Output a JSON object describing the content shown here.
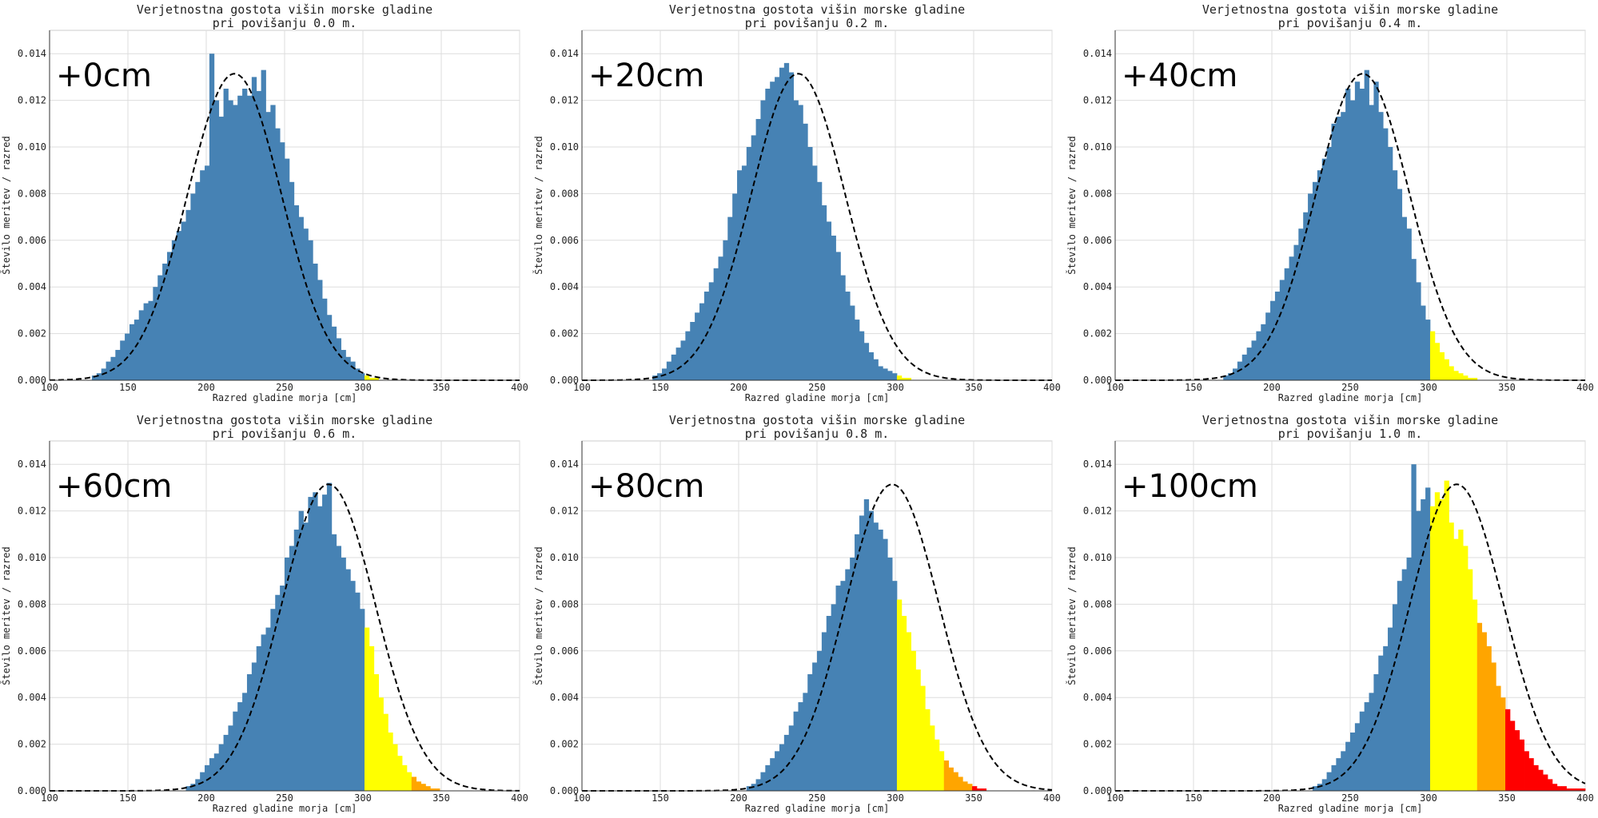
{
  "figure": {
    "rows": 2,
    "cols": 3
  },
  "colors": {
    "blue": "#4682b4",
    "yellow": "#ffff00",
    "orange": "#ffa500",
    "red": "#ff0000",
    "grid": "#dddddd",
    "curve": "#000000"
  },
  "chart_data": [
    {
      "type": "bar",
      "title": [
        "Verjetnostna gostota višin morske gladine",
        "pri povišanju 0.0 m."
      ],
      "tag": "+0cm",
      "xlabel": "Razred gladine morja [cm]",
      "ylabel": "Število meritev / razred",
      "xlim": [
        100,
        400
      ],
      "ylim": [
        0,
        0.015
      ],
      "xticks": [
        "100",
        "150",
        "200",
        "250",
        "300",
        "350",
        "400"
      ],
      "yticks": [
        "0.000",
        "0.002",
        "0.004",
        "0.006",
        "0.008",
        "0.010",
        "0.012",
        "0.014"
      ],
      "grid": true,
      "mean": 218,
      "sd": 30,
      "bin_width": 3,
      "bin_start": 100,
      "values": [
        0,
        0,
        0,
        0,
        0,
        0,
        0,
        0,
        0,
        0.0002,
        0.0003,
        0.0005,
        0.0008,
        0.001,
        0.0013,
        0.0017,
        0.002,
        0.0024,
        0.0026,
        0.003,
        0.0033,
        0.0034,
        0.004,
        0.0045,
        0.005,
        0.0055,
        0.006,
        0.0064,
        0.0068,
        0.0073,
        0.008,
        0.0085,
        0.009,
        0.0092,
        0.014,
        0.012,
        0.0113,
        0.0125,
        0.012,
        0.0118,
        0.0122,
        0.0125,
        0.0122,
        0.013,
        0.0124,
        0.0133,
        0.0115,
        0.0118,
        0.0108,
        0.0102,
        0.0095,
        0.0085,
        0.0075,
        0.007,
        0.0065,
        0.006,
        0.005,
        0.0043,
        0.0035,
        0.0028,
        0.0023,
        0.0018,
        0.0013,
        0.001,
        0.0008,
        0.0005,
        0.0003,
        0.0002,
        0.0001,
        0.0001,
        0,
        0,
        0,
        0,
        0,
        0,
        0,
        0,
        0,
        0,
        0,
        0,
        0,
        0,
        0,
        0,
        0,
        0,
        0,
        0,
        0,
        0,
        0,
        0,
        0,
        0,
        0,
        0,
        0,
        0
      ],
      "threshold_bands": [
        [
          100,
          300,
          "blue"
        ],
        [
          300,
          330,
          "yellow"
        ],
        [
          330,
          350,
          "orange"
        ],
        [
          350,
          400,
          "red"
        ]
      ]
    },
    {
      "type": "bar",
      "title": [
        "Verjetnostna gostota višin morske gladine",
        "pri povišanju 0.2 m."
      ],
      "tag": "+20cm",
      "xlabel": "Razred gladine morja [cm]",
      "ylabel": "Število meritev / razred",
      "xlim": [
        100,
        400
      ],
      "ylim": [
        0,
        0.015
      ],
      "xticks": [
        "100",
        "150",
        "200",
        "250",
        "300",
        "350",
        "400"
      ],
      "yticks": [
        "0.000",
        "0.002",
        "0.004",
        "0.006",
        "0.008",
        "0.010",
        "0.012",
        "0.014"
      ],
      "grid": true,
      "mean": 238,
      "sd": 30,
      "bin_width": 3,
      "bin_start": 100,
      "values": [
        0,
        0,
        0,
        0,
        0,
        0,
        0,
        0,
        0,
        0,
        0,
        0,
        0,
        0,
        0,
        0.0002,
        0.0003,
        0.0005,
        0.0008,
        0.0011,
        0.0014,
        0.0017,
        0.0021,
        0.0025,
        0.0029,
        0.0033,
        0.0038,
        0.0042,
        0.0048,
        0.0053,
        0.006,
        0.007,
        0.008,
        0.009,
        0.0092,
        0.01,
        0.0105,
        0.0112,
        0.012,
        0.0125,
        0.0128,
        0.013,
        0.0134,
        0.0136,
        0.0132,
        0.012,
        0.0118,
        0.011,
        0.01,
        0.0092,
        0.0085,
        0.0075,
        0.0068,
        0.0062,
        0.0055,
        0.0045,
        0.0038,
        0.0032,
        0.0026,
        0.0021,
        0.0016,
        0.0012,
        0.0009,
        0.0006,
        0.0005,
        0.0004,
        0.0003,
        0.0002,
        0.0001,
        0.0001,
        0,
        0,
        0,
        0,
        0,
        0,
        0,
        0,
        0,
        0,
        0,
        0,
        0,
        0,
        0,
        0,
        0,
        0,
        0,
        0,
        0,
        0,
        0,
        0,
        0,
        0,
        0,
        0,
        0,
        0
      ],
      "threshold_bands": [
        [
          100,
          300,
          "blue"
        ],
        [
          300,
          330,
          "yellow"
        ],
        [
          330,
          350,
          "orange"
        ],
        [
          350,
          400,
          "red"
        ]
      ]
    },
    {
      "type": "bar",
      "title": [
        "Verjetnostna gostota višin morske gladine",
        "pri povišanju 0.4 m."
      ],
      "tag": "+40cm",
      "xlabel": "Razred gladine morja [cm]",
      "ylabel": "Število meritev / razred",
      "xlim": [
        100,
        400
      ],
      "ylim": [
        0,
        0.015
      ],
      "xticks": [
        "100",
        "150",
        "200",
        "250",
        "300",
        "350",
        "400"
      ],
      "yticks": [
        "0.000",
        "0.002",
        "0.004",
        "0.006",
        "0.008",
        "0.010",
        "0.012",
        "0.014"
      ],
      "grid": true,
      "mean": 258,
      "sd": 30,
      "bin_width": 3,
      "bin_start": 100,
      "values": [
        0,
        0,
        0,
        0,
        0,
        0,
        0,
        0,
        0,
        0,
        0,
        0,
        0,
        0,
        0,
        0,
        0,
        0,
        0,
        0,
        0,
        0,
        0,
        0.0002,
        0.0003,
        0.0005,
        0.0008,
        0.0011,
        0.0014,
        0.0017,
        0.0021,
        0.0024,
        0.0029,
        0.0034,
        0.0038,
        0.0043,
        0.0048,
        0.0053,
        0.0058,
        0.0065,
        0.0072,
        0.008,
        0.0085,
        0.009,
        0.0095,
        0.01,
        0.011,
        0.0113,
        0.0115,
        0.0125,
        0.012,
        0.0128,
        0.0125,
        0.0133,
        0.0118,
        0.0128,
        0.0115,
        0.0108,
        0.01,
        0.009,
        0.0082,
        0.007,
        0.0065,
        0.0052,
        0.0042,
        0.0032,
        0.0026,
        0.0021,
        0.0016,
        0.0012,
        0.0009,
        0.0006,
        0.0004,
        0.0003,
        0.0002,
        0.0001,
        0.0001,
        0,
        0,
        0,
        0,
        0,
        0,
        0,
        0,
        0,
        0,
        0,
        0,
        0,
        0,
        0,
        0,
        0,
        0,
        0,
        0,
        0,
        0,
        0
      ],
      "threshold_bands": [
        [
          100,
          300,
          "blue"
        ],
        [
          300,
          330,
          "yellow"
        ],
        [
          330,
          350,
          "orange"
        ],
        [
          350,
          400,
          "red"
        ]
      ]
    },
    {
      "type": "bar",
      "title": [
        "Verjetnostna gostota višin morske gladine",
        "pri povišanju 0.6 m."
      ],
      "tag": "+60cm",
      "xlabel": "Razred gladine morja [cm]",
      "ylabel": "Število meritev / razred",
      "xlim": [
        100,
        400
      ],
      "ylim": [
        0,
        0.015
      ],
      "xticks": [
        "100",
        "150",
        "200",
        "250",
        "300",
        "350",
        "400"
      ],
      "yticks": [
        "0.000",
        "0.002",
        "0.004",
        "0.006",
        "0.008",
        "0.010",
        "0.012",
        "0.014"
      ],
      "grid": true,
      "mean": 278,
      "sd": 30,
      "bin_width": 3,
      "bin_start": 100,
      "values": [
        0,
        0,
        0,
        0,
        0,
        0,
        0,
        0,
        0,
        0,
        0,
        0,
        0,
        0,
        0,
        0,
        0,
        0,
        0,
        0,
        0,
        0,
        0,
        0,
        0,
        0,
        0,
        0,
        0,
        0.0002,
        0.0003,
        0.0005,
        0.0008,
        0.0011,
        0.0014,
        0.0016,
        0.002,
        0.0024,
        0.0028,
        0.0034,
        0.0038,
        0.0042,
        0.005,
        0.0055,
        0.0062,
        0.0067,
        0.007,
        0.0078,
        0.0084,
        0.0088,
        0.01,
        0.0105,
        0.0112,
        0.012,
        0.0115,
        0.0126,
        0.0128,
        0.0122,
        0.0127,
        0.0132,
        0.011,
        0.0105,
        0.01,
        0.0095,
        0.009,
        0.0085,
        0.0078,
        0.007,
        0.0062,
        0.005,
        0.004,
        0.0033,
        0.0025,
        0.002,
        0.0015,
        0.0011,
        0.0008,
        0.0006,
        0.0004,
        0.0003,
        0.0002,
        0.0001,
        0.0001,
        0,
        0,
        0,
        0,
        0,
        0,
        0,
        0,
        0,
        0,
        0,
        0,
        0,
        0,
        0,
        0,
        0,
        0
      ],
      "threshold_bands": [
        [
          100,
          300,
          "blue"
        ],
        [
          300,
          330,
          "yellow"
        ],
        [
          330,
          350,
          "orange"
        ],
        [
          350,
          400,
          "red"
        ]
      ]
    },
    {
      "type": "bar",
      "title": [
        "Verjetnostna gostota višin morske gladine",
        "pri povišanju 0.8 m."
      ],
      "tag": "+80cm",
      "xlabel": "Razred gladine morja [cm]",
      "ylabel": "Število meritev / razred",
      "xlim": [
        100,
        400
      ],
      "ylim": [
        0,
        0.015
      ],
      "xticks": [
        "100",
        "150",
        "200",
        "250",
        "300",
        "350",
        "400"
      ],
      "yticks": [
        "0.000",
        "0.002",
        "0.004",
        "0.006",
        "0.008",
        "0.010",
        "0.012",
        "0.014"
      ],
      "grid": true,
      "mean": 298,
      "sd": 30,
      "bin_width": 3,
      "bin_start": 100,
      "values": [
        0,
        0,
        0,
        0,
        0,
        0,
        0,
        0,
        0,
        0,
        0,
        0,
        0,
        0,
        0,
        0,
        0,
        0,
        0,
        0,
        0,
        0,
        0,
        0,
        0,
        0,
        0,
        0,
        0,
        0,
        0,
        0,
        0,
        0,
        0,
        0.0002,
        0.0003,
        0.0005,
        0.0008,
        0.0011,
        0.0014,
        0.0017,
        0.002,
        0.0024,
        0.0028,
        0.0034,
        0.0038,
        0.0042,
        0.005,
        0.0055,
        0.006,
        0.0068,
        0.0075,
        0.008,
        0.0088,
        0.009,
        0.0095,
        0.01,
        0.011,
        0.0118,
        0.0125,
        0.012,
        0.0115,
        0.0112,
        0.0108,
        0.01,
        0.009,
        0.0082,
        0.0075,
        0.0068,
        0.006,
        0.0052,
        0.0045,
        0.0035,
        0.0028,
        0.0022,
        0.0017,
        0.0013,
        0.001,
        0.0008,
        0.0006,
        0.0004,
        0.0003,
        0.0002,
        0.0001,
        0.0001,
        0,
        0,
        0,
        0,
        0,
        0,
        0,
        0,
        0,
        0,
        0,
        0,
        0,
        0
      ],
      "threshold_bands": [
        [
          100,
          300,
          "blue"
        ],
        [
          300,
          330,
          "yellow"
        ],
        [
          330,
          350,
          "orange"
        ],
        [
          350,
          400,
          "red"
        ]
      ]
    },
    {
      "type": "bar",
      "title": [
        "Verjetnostna gostota višin morske gladine",
        "pri povišanju 1.0 m."
      ],
      "tag": "+100cm",
      "xlabel": "Razred gladine morja [cm]",
      "ylabel": "Število meritev / razred",
      "xlim": [
        100,
        400
      ],
      "ylim": [
        0,
        0.015
      ],
      "xticks": [
        "100",
        "150",
        "200",
        "250",
        "300",
        "350",
        "400"
      ],
      "yticks": [
        "0.000",
        "0.002",
        "0.004",
        "0.006",
        "0.008",
        "0.010",
        "0.012",
        "0.014"
      ],
      "grid": true,
      "mean": 318,
      "sd": 30,
      "bin_width": 3,
      "bin_start": 100,
      "values": [
        0,
        0,
        0,
        0,
        0,
        0,
        0,
        0,
        0,
        0,
        0,
        0,
        0,
        0,
        0,
        0,
        0,
        0,
        0,
        0,
        0,
        0,
        0,
        0,
        0,
        0,
        0,
        0,
        0,
        0,
        0,
        0,
        0,
        0,
        0,
        0,
        0,
        0,
        0,
        0,
        0,
        0,
        0.0002,
        0.0003,
        0.0005,
        0.0008,
        0.0011,
        0.0014,
        0.0017,
        0.0021,
        0.0025,
        0.0029,
        0.0034,
        0.0038,
        0.0042,
        0.005,
        0.0058,
        0.0062,
        0.007,
        0.008,
        0.009,
        0.0095,
        0.01,
        0.014,
        0.012,
        0.0125,
        0.013,
        0.0122,
        0.0128,
        0.0125,
        0.0133,
        0.0115,
        0.0108,
        0.0112,
        0.0105,
        0.0095,
        0.0082,
        0.0072,
        0.0068,
        0.0062,
        0.0055,
        0.0045,
        0.004,
        0.0035,
        0.003,
        0.0026,
        0.0022,
        0.0017,
        0.0014,
        0.0011,
        0.0009,
        0.0007,
        0.0005,
        0.0003,
        0.0002,
        0.0002,
        0.0001,
        0.0001,
        0.0001,
        0.0001
      ],
      "threshold_bands": [
        [
          100,
          300,
          "blue"
        ],
        [
          300,
          330,
          "yellow"
        ],
        [
          330,
          350,
          "orange"
        ],
        [
          350,
          400,
          "red"
        ]
      ]
    }
  ]
}
